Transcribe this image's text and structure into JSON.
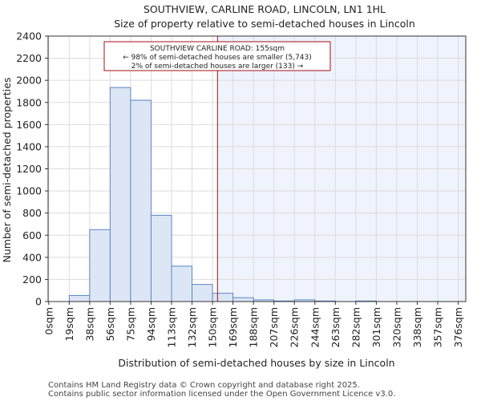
{
  "chart_data": {
    "type": "bar",
    "title": "SOUTHVIEW, CARLINE ROAD, LINCOLN, LN1 1HL",
    "subtitle": "Size of property relative to semi-detached houses in Lincoln",
    "xlabel": "Distribution of semi-detached houses by size in Lincoln",
    "ylabel": "Number of semi-detached properties",
    "x_tick_labels": [
      "0sqm",
      "19sqm",
      "38sqm",
      "56sqm",
      "75sqm",
      "94sqm",
      "113sqm",
      "132sqm",
      "150sqm",
      "169sqm",
      "188sqm",
      "207sqm",
      "226sqm",
      "244sqm",
      "263sqm",
      "282sqm",
      "301sqm",
      "320sqm",
      "338sqm",
      "357sqm",
      "376sqm"
    ],
    "values": [
      0,
      55,
      650,
      1935,
      1820,
      780,
      320,
      155,
      75,
      35,
      15,
      5,
      15,
      5,
      0,
      5,
      0,
      0,
      0,
      0
    ],
    "y_ticks": [
      0,
      200,
      400,
      600,
      800,
      1000,
      1200,
      1400,
      1600,
      1800,
      2000,
      2200,
      2400
    ],
    "ylim": [
      0,
      2400
    ],
    "grid": true,
    "bar_color": "#dce6f5",
    "bar_edge_color": "#5b87c5",
    "highlight_region_color": "#eef3fc",
    "marker_line_color": "#a50f15",
    "marker_value": 155,
    "annotation": {
      "line1": "SOUTHVIEW CARLINE ROAD: 155sqm",
      "line2": "← 98% of semi-detached houses are smaller (5,743)",
      "line3": "2% of semi-detached houses are larger (133) →"
    }
  },
  "footer": {
    "line1": "Contains HM Land Registry data © Crown copyright and database right 2025.",
    "line2": "Contains public sector information licensed under the Open Government Licence v3.0."
  }
}
